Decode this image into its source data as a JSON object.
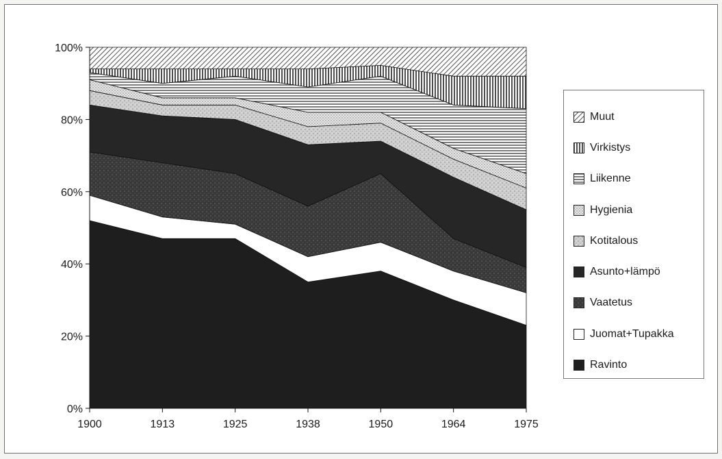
{
  "chart_data": {
    "type": "area",
    "stacked": true,
    "percent": true,
    "x": [
      "1900",
      "1913",
      "1925",
      "1938",
      "1950",
      "1964",
      "1975"
    ],
    "y_ticks": [
      "0%",
      "20%",
      "40%",
      "60%",
      "80%",
      "100%"
    ],
    "ylim": [
      0,
      100
    ],
    "legend_position": "right",
    "series": [
      {
        "name": "Ravinto",
        "values": [
          52,
          47,
          47,
          35,
          38,
          30,
          23
        ],
        "fill": "#1e1e1e",
        "pattern": "solid"
      },
      {
        "name": "Juomat+Tupakka",
        "values": [
          7,
          6,
          4,
          7,
          8,
          8,
          9
        ],
        "fill": "#ffffff",
        "pattern": "solid"
      },
      {
        "name": "Vaatetus",
        "values": [
          12,
          15,
          14,
          14,
          19,
          9,
          7
        ],
        "fill": "#3c3c3c",
        "pattern": "speckle"
      },
      {
        "name": "Asunto+lämpö",
        "values": [
          13,
          13,
          15,
          17,
          9,
          17,
          16
        ],
        "fill": "#262626",
        "pattern": "solid"
      },
      {
        "name": "Kotitalous",
        "values": [
          4,
          3,
          4,
          5,
          5,
          5,
          6
        ],
        "fill": "#d0d0d0",
        "pattern": "speckle"
      },
      {
        "name": "Hygienia",
        "values": [
          3,
          2,
          2,
          4,
          3,
          3,
          4
        ],
        "fill": "#e0e0e0",
        "pattern": "dots"
      },
      {
        "name": "Liikenne",
        "values": [
          2,
          4,
          6,
          7,
          10,
          12,
          18
        ],
        "fill": "#ffffff",
        "pattern": "horizontal"
      },
      {
        "name": "Virkistys",
        "values": [
          1,
          4,
          2,
          5,
          3,
          8,
          9
        ],
        "fill": "#ffffff",
        "pattern": "vertical"
      },
      {
        "name": "Muut",
        "values": [
          6,
          6,
          6,
          6,
          5,
          8,
          8
        ],
        "fill": "#ffffff",
        "pattern": "diagonal"
      }
    ],
    "legend_order": [
      "Muut",
      "Virkistys",
      "Liikenne",
      "Hygienia",
      "Kotitalous",
      "Asunto+lämpö",
      "Vaatetus",
      "Juomat+Tupakka",
      "Ravinto"
    ]
  }
}
